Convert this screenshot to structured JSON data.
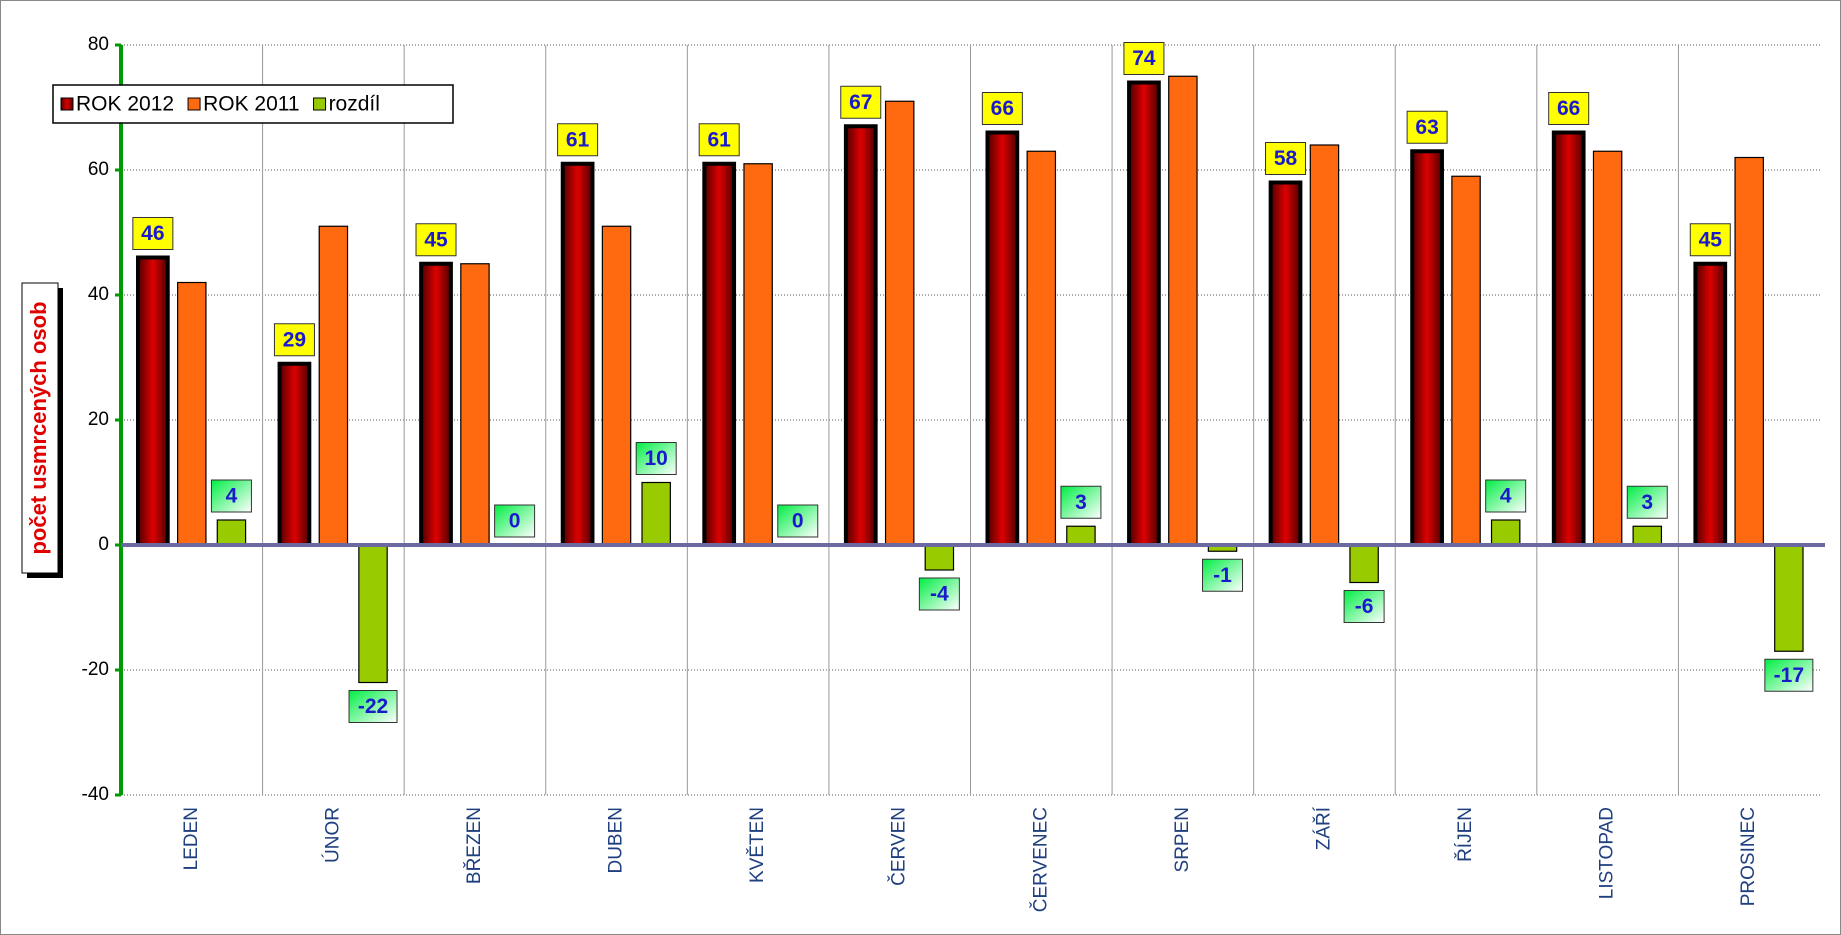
{
  "chart_data": {
    "type": "bar",
    "y_label": "počet usmrcených osob",
    "categories": [
      "LEDEN",
      "ÚNOR",
      "BŘEZEN",
      "DUBEN",
      "KVĚTEN",
      "ČERVEN",
      "ČERVENEC",
      "SRPEN",
      "ZÁŘÍ",
      "ŘÍJEN",
      "LISTOPAD",
      "PROSINEC"
    ],
    "series": [
      {
        "name": "ROK 2012",
        "color": "#dd0000",
        "values": [
          46,
          29,
          45,
          61,
          61,
          67,
          66,
          74,
          58,
          63,
          66,
          45
        ],
        "data_labels": true
      },
      {
        "name": "ROK 2011",
        "color": "#ff6a10",
        "values": [
          42,
          51,
          45,
          51,
          61,
          71,
          63,
          75,
          64,
          59,
          63,
          62
        ],
        "data_labels": false
      },
      {
        "name": "rozdíl",
        "color": "#99cc00",
        "values": [
          4,
          -22,
          0,
          10,
          0,
          -4,
          3,
          -1,
          -6,
          4,
          3,
          -17
        ],
        "data_labels": true
      }
    ],
    "ylim": [
      -40,
      80
    ],
    "yticks": [
      -40,
      -20,
      0,
      20,
      40,
      60,
      80
    ],
    "grid": true,
    "legend": "top-left"
  }
}
